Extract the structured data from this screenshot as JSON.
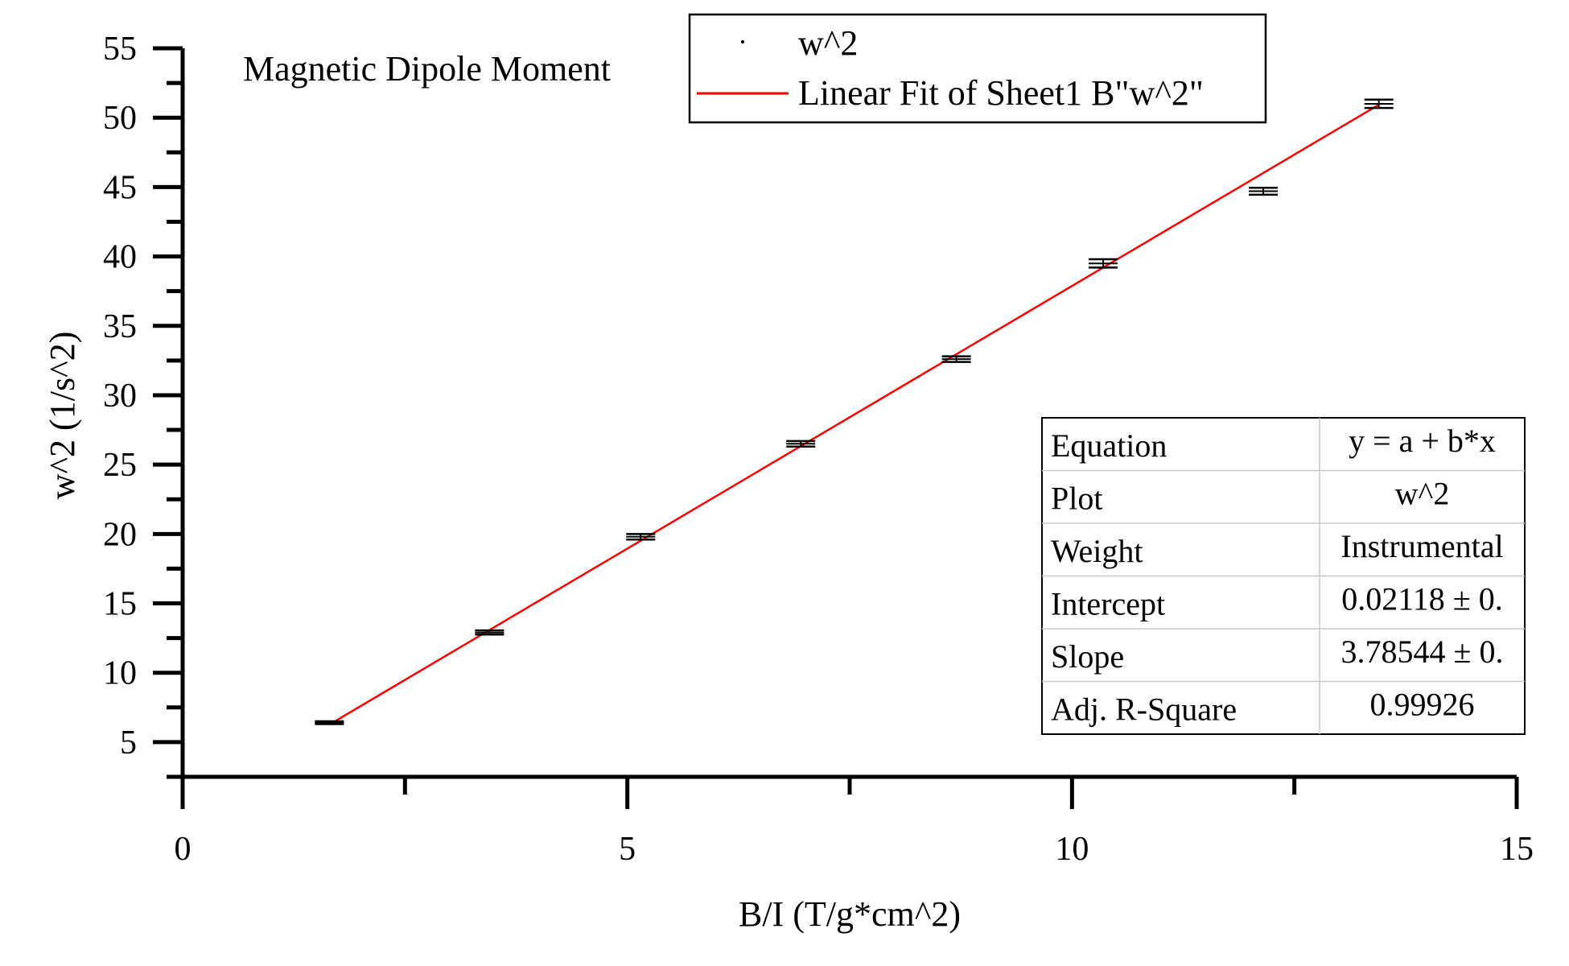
{
  "chart_data": {
    "type": "scatter",
    "title": "Magnetic Dipole Moment",
    "xlabel": "B/I (T/g*cm^2)",
    "ylabel": "w^2 (1/s^2)",
    "xlim": [
      0,
      15
    ],
    "ylim": [
      2.5,
      55
    ],
    "xticks": [
      0,
      5,
      10,
      15
    ],
    "yticks": [
      5,
      10,
      15,
      20,
      25,
      30,
      35,
      40,
      45,
      50,
      55
    ],
    "grid": false,
    "legend_position": "top",
    "series": [
      {
        "name": "w^2",
        "kind": "scatter-with-errorbars",
        "x": [
          1.65,
          3.45,
          5.15,
          6.95,
          8.7,
          10.35,
          12.15,
          13.45
        ],
        "y": [
          6.4,
          12.9,
          19.8,
          26.5,
          32.6,
          39.5,
          44.7,
          51.0
        ],
        "error": [
          0.1,
          0.15,
          0.2,
          0.2,
          0.2,
          0.3,
          0.25,
          0.3
        ],
        "color": "#000000"
      },
      {
        "name": "Linear Fit of Sheet1 B\"w^2\"",
        "kind": "line",
        "x": [
          1.65,
          13.45
        ],
        "intercept": 0.02118,
        "slope": 3.78544,
        "color": "#ff0000"
      }
    ],
    "fit_table": {
      "rows": [
        {
          "label": "Equation",
          "value": "y = a + b*x"
        },
        {
          "label": "Plot",
          "value": "w^2"
        },
        {
          "label": "Weight",
          "value": "Instrumental"
        },
        {
          "label": "Intercept",
          "value": "0.02118 ± 0."
        },
        {
          "label": "Slope",
          "value": "3.78544 ± 0."
        },
        {
          "label": "Adj. R-Square",
          "value": "0.99926"
        }
      ]
    }
  }
}
